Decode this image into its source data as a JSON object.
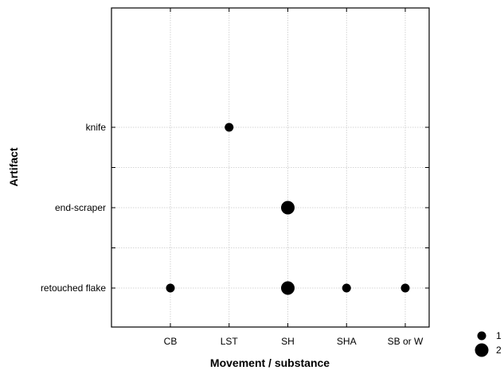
{
  "chart_data": {
    "type": "scatter",
    "xlabel": "Movement / substance",
    "ylabel": "Artifact",
    "x_categories": [
      "CB",
      "LST",
      "SH",
      "SHA",
      "SB or W"
    ],
    "y_categories": [
      "retouched flake",
      "end-scraper",
      "knife"
    ],
    "grid": true,
    "points": [
      {
        "x": "LST",
        "y": "knife",
        "count": 1
      },
      {
        "x": "SH",
        "y": "end-scraper",
        "count": 2
      },
      {
        "x": "CB",
        "y": "retouched flake",
        "count": 1
      },
      {
        "x": "SH",
        "y": "retouched flake",
        "count": 2
      },
      {
        "x": "SHA",
        "y": "retouched flake",
        "count": 1
      },
      {
        "x": "SB or W",
        "y": "retouched flake",
        "count": 1
      }
    ],
    "legend": {
      "placement": "bottom-right",
      "entries": [
        {
          "label": "1",
          "count": 1
        },
        {
          "label": "2",
          "count": 2
        }
      ]
    }
  }
}
